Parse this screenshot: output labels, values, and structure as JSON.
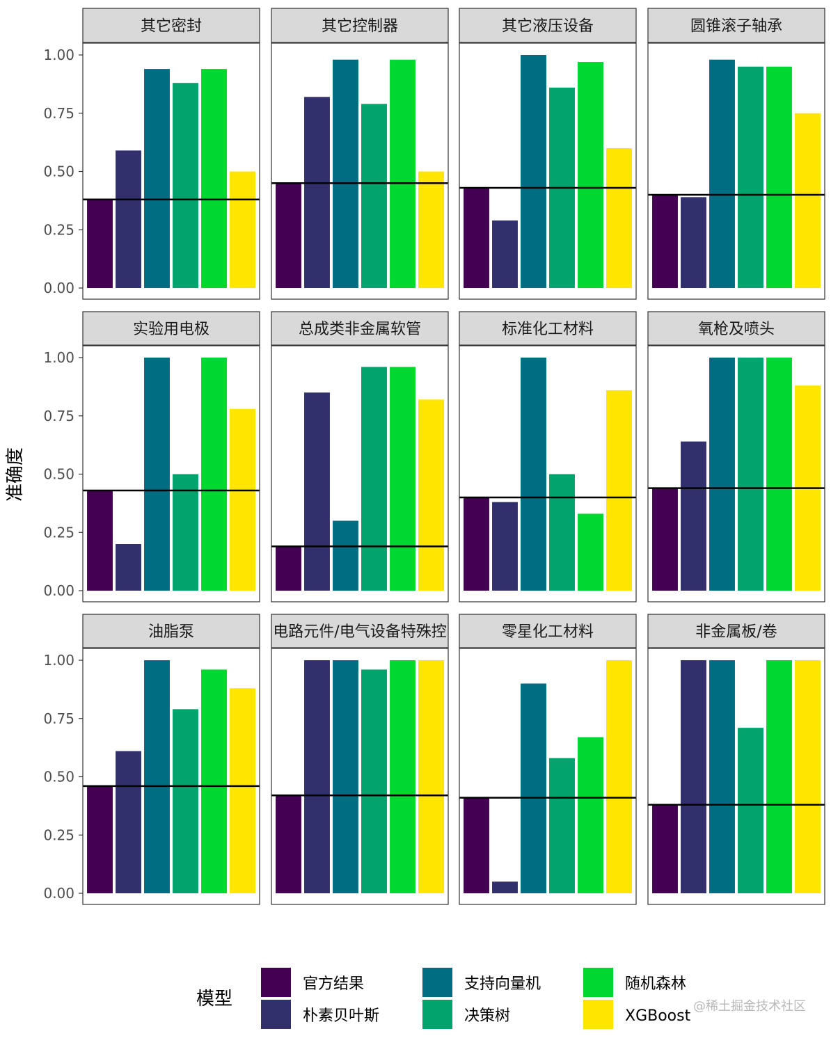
{
  "chart_data": {
    "type": "bar",
    "ylabel": "准确度",
    "ylim": [
      0,
      1
    ],
    "yticks": [
      "0.00",
      "0.25",
      "0.50",
      "0.75",
      "1.00"
    ],
    "ytick_values": [
      0,
      0.25,
      0.5,
      0.75,
      1
    ],
    "models": [
      "官方结果",
      "朴素贝叶斯",
      "支持向量机",
      "决策树",
      "随机森林",
      "XGBoost"
    ],
    "colors": [
      "#440154",
      "#31306d",
      "#006d82",
      "#00a46c",
      "#00d832",
      "#ffe600"
    ],
    "baseline_line": "black horizontal line at the 官方结果 value in each facet",
    "legend": {
      "title": "模型",
      "position": "bottom",
      "items": [
        "官方结果",
        "朴素贝叶斯",
        "支持向量机",
        "决策树",
        "随机森林",
        "XGBoost"
      ]
    },
    "facets": [
      {
        "title": "其它密封",
        "values": [
          0.38,
          0.59,
          0.94,
          0.88,
          0.94,
          0.5
        ]
      },
      {
        "title": "其它控制器",
        "values": [
          0.45,
          0.82,
          0.98,
          0.79,
          0.98,
          0.5
        ]
      },
      {
        "title": "其它液压设备",
        "values": [
          0.43,
          0.29,
          1.0,
          0.86,
          0.97,
          0.6
        ]
      },
      {
        "title": "圆锥滚子轴承",
        "values": [
          0.4,
          0.39,
          0.98,
          0.95,
          0.95,
          0.75
        ]
      },
      {
        "title": "实验用电极",
        "values": [
          0.43,
          0.2,
          1.0,
          0.5,
          1.0,
          0.78
        ]
      },
      {
        "title": "总成类非金属软管",
        "values": [
          0.19,
          0.85,
          0.3,
          0.96,
          0.96,
          0.82
        ]
      },
      {
        "title": "标准化工材料",
        "values": [
          0.4,
          0.38,
          1.0,
          0.5,
          0.33,
          0.86
        ]
      },
      {
        "title": "氧枪及喷头",
        "values": [
          0.44,
          0.64,
          1.0,
          1.0,
          1.0,
          0.88
        ]
      },
      {
        "title": "油脂泵",
        "values": [
          0.46,
          0.61,
          1.0,
          0.79,
          0.96,
          0.88
        ]
      },
      {
        "title": "电路元件/电气设备特殊控",
        "values": [
          0.42,
          1.0,
          1.0,
          0.96,
          1.0,
          1.0
        ]
      },
      {
        "title": "零星化工材料",
        "values": [
          0.41,
          0.05,
          0.9,
          0.58,
          0.67,
          1.0
        ]
      },
      {
        "title": "非金属板/卷",
        "values": [
          0.38,
          1.0,
          1.0,
          0.71,
          1.0,
          1.0
        ]
      }
    ]
  },
  "watermark": "@稀土掘金技术社区"
}
